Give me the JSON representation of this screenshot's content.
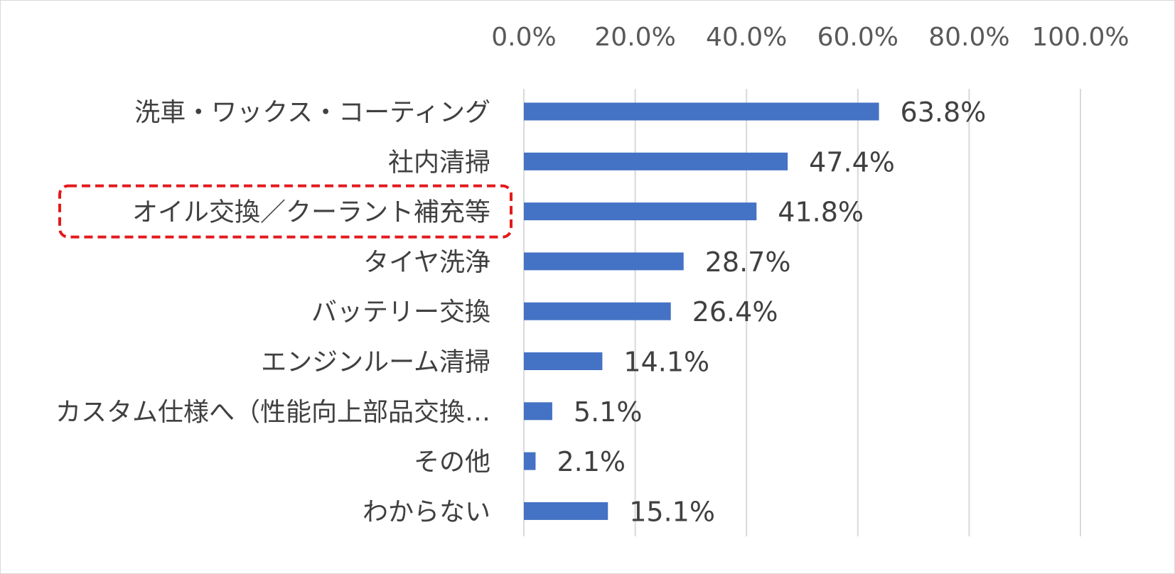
{
  "chart_data": {
    "type": "bar",
    "orientation": "horizontal",
    "categories": [
      "洗車・ワックス・コーティング",
      "社内清掃",
      "オイル交換／クーラント補充等",
      "タイヤ洗浄",
      "バッテリー交換",
      "エンジンルーム清掃",
      "カスタム仕様へ（性能向上部品交換…",
      "その他",
      "わからない"
    ],
    "values": [
      63.8,
      47.4,
      41.8,
      28.7,
      26.4,
      14.1,
      5.1,
      2.1,
      15.1
    ],
    "value_labels": [
      "63.8%",
      "47.4%",
      "41.8%",
      "28.7%",
      "26.4%",
      "14.1%",
      "5.1%",
      "2.1%",
      "15.1%"
    ],
    "xlim": [
      0,
      100
    ],
    "x_ticks": [
      "0.0%",
      "20.0%",
      "40.0%",
      "60.0%",
      "80.0%",
      "100.0%"
    ],
    "x_axis_position": "top",
    "grid": true,
    "legend": "none",
    "highlighted_category": "オイル交換／クーラント補充等",
    "colors": {
      "bar": "#4472c4",
      "grid": "#d9d9d9",
      "highlight_box": "#e31a1c",
      "text": "#404040"
    }
  }
}
